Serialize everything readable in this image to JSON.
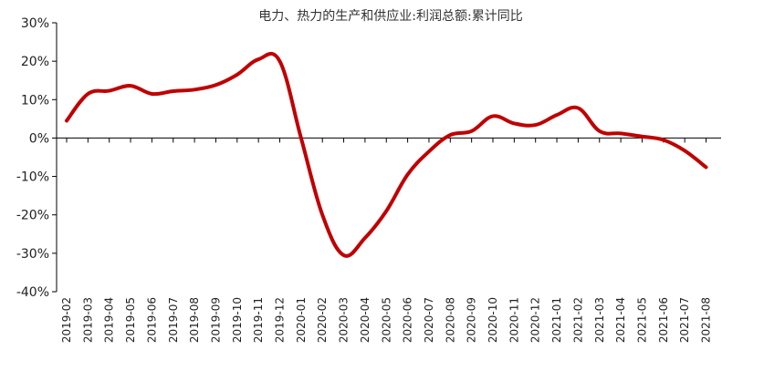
{
  "chart_data": {
    "type": "line",
    "title": "电力、热力的生产和供应业:利润总额:累计同比",
    "xlabel": "",
    "ylabel": "",
    "ylim": [
      -40,
      30
    ],
    "y_ticks": [
      "30%",
      "20%",
      "10%",
      "0%",
      "-10%",
      "-20%",
      "-30%",
      "-40%"
    ],
    "y_tick_values": [
      30,
      20,
      10,
      0,
      -10,
      -20,
      -30,
      -40
    ],
    "grid": false,
    "categories": [
      "2019-02",
      "2019-03",
      "2019-04",
      "2019-05",
      "2019-06",
      "2019-07",
      "2019-08",
      "2019-09",
      "2019-10",
      "2019-11",
      "2019-12",
      "2020-01",
      "2020-02",
      "2020-03",
      "2020-04",
      "2020-05",
      "2020-06",
      "2020-07",
      "2020-08",
      "2020-09",
      "2020-10",
      "2020-11",
      "2020-12",
      "2021-01",
      "2021-02",
      "2021-03",
      "2021-04",
      "2021-05",
      "2021-06",
      "2021-07",
      "2021-08"
    ],
    "series": [
      {
        "values": [
          4.5,
          11.5,
          12.3,
          13.6,
          11.5,
          12.2,
          12.6,
          13.8,
          16.5,
          20.5,
          20.0,
          0.0,
          -20.0,
          -30.5,
          -26.0,
          -19.0,
          -9.5,
          -3.5,
          0.8,
          1.8,
          5.7,
          3.8,
          3.4,
          6.0,
          7.8,
          1.8,
          1.2,
          0.4,
          -0.5,
          -3.3,
          -7.6
        ]
      }
    ],
    "colors": {
      "line": "#C00000",
      "axis": "#000000",
      "text": "#222222"
    }
  }
}
